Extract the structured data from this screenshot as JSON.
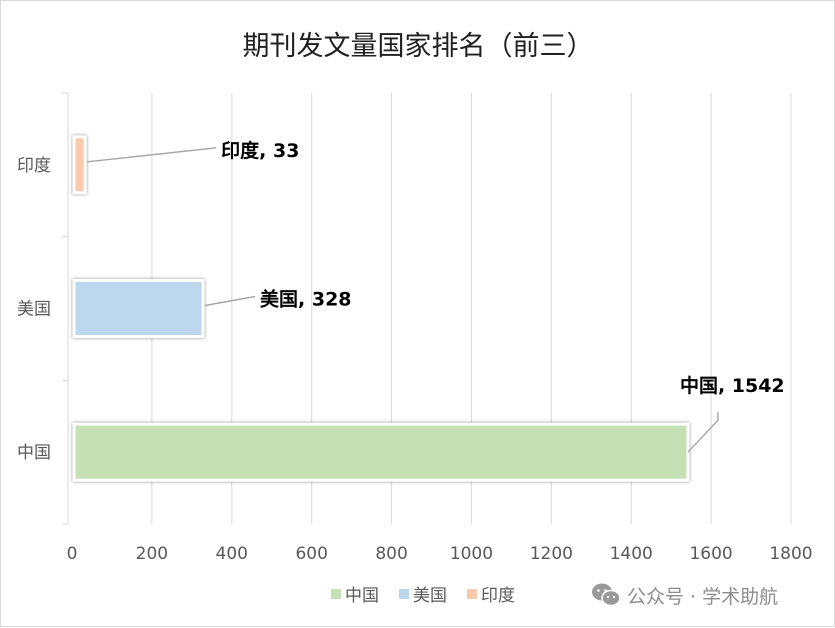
{
  "chart_data": {
    "type": "bar",
    "orientation": "horizontal",
    "title": "期刊发文量国家排名（前三）",
    "categories": [
      "中国",
      "美国",
      "印度"
    ],
    "values": [
      1542,
      328,
      33
    ],
    "data_labels": [
      "中国, 1542",
      "美国, 328",
      "印度, 33"
    ],
    "colors": [
      "#c5e0b4",
      "#bdd7ee",
      "#f8cbad"
    ],
    "xlim": [
      0,
      1800
    ],
    "x_ticks": [
      "0",
      "200",
      "400",
      "600",
      "800",
      "1000",
      "1200",
      "1400",
      "1600",
      "1800"
    ],
    "grid": true,
    "legend_position": "bottom",
    "legend": [
      {
        "name": "中国",
        "color": "#c5e0b4"
      },
      {
        "name": "美国",
        "color": "#bdd7ee"
      },
      {
        "name": "印度",
        "color": "#f8cbad"
      }
    ]
  },
  "watermark": {
    "text": "公众号 · 学术助航",
    "icon": "wechat-icon"
  }
}
